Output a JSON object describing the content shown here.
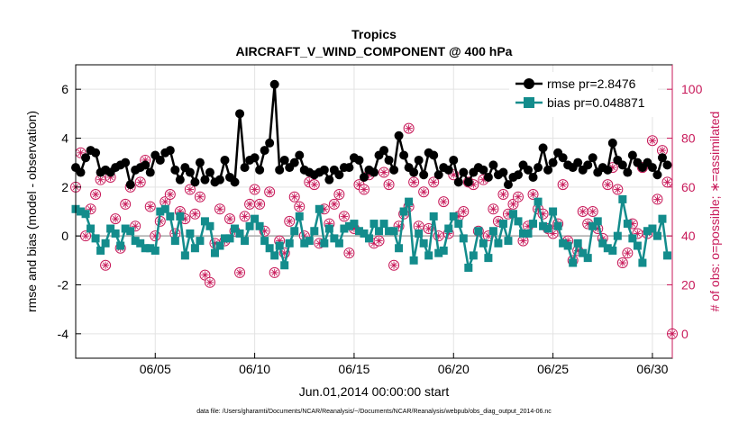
{
  "chart_data": {
    "type": "line",
    "title": "Tropics",
    "subtitle": "AIRCRAFT_V_WIND_COMPONENT @ 400 hPa",
    "xlabel": "Jun.01,2014 00:00:00 start",
    "ylabel_left": "rmse and bias (model - observation)",
    "ylabel_right": "# of obs: o=possible; ∗=assimilated",
    "footnote": "data file: /Users/gharamti/Documents/NCAR/Reanalysis/~/Documents/NCAR/Reanalysis/webpub/obs_diag_output_2014-06.nc",
    "x_ticks": [
      {
        "x": 5,
        "label": "06/05"
      },
      {
        "x": 10,
        "label": "06/10"
      },
      {
        "x": 15,
        "label": "06/15"
      },
      {
        "x": 20,
        "label": "06/20"
      },
      {
        "x": 25,
        "label": "06/25"
      },
      {
        "x": 30,
        "label": "06/30"
      }
    ],
    "xlim": [
      1,
      31
    ],
    "ylim_left": [
      -5,
      7
    ],
    "yticks_left": [
      -4,
      -2,
      0,
      2,
      4,
      6
    ],
    "ylim_right": [
      -10,
      110
    ],
    "yticks_right": [
      0,
      20,
      40,
      60,
      80,
      100
    ],
    "grid": true,
    "legend_position": "top-right",
    "colors": {
      "rmse": "#000000",
      "bias": "#138c8c",
      "obs": "#c81a5a",
      "zero_line": "#aaaaaa"
    },
    "x": [
      1.0,
      1.25,
      1.5,
      1.75,
      2.0,
      2.25,
      2.5,
      2.75,
      3.0,
      3.25,
      3.5,
      3.75,
      4.0,
      4.25,
      4.5,
      4.75,
      5.0,
      5.25,
      5.5,
      5.75,
      6.0,
      6.25,
      6.5,
      6.75,
      7.0,
      7.25,
      7.5,
      7.75,
      8.0,
      8.25,
      8.5,
      8.75,
      9.0,
      9.25,
      9.5,
      9.75,
      10.0,
      10.25,
      10.5,
      10.75,
      11.0,
      11.25,
      11.5,
      11.75,
      12.0,
      12.25,
      12.5,
      12.75,
      13.0,
      13.25,
      13.5,
      13.75,
      14.0,
      14.25,
      14.5,
      14.75,
      15.0,
      15.25,
      15.5,
      15.75,
      16.0,
      16.25,
      16.5,
      16.75,
      17.0,
      17.25,
      17.5,
      17.75,
      18.0,
      18.25,
      18.5,
      18.75,
      19.0,
      19.25,
      19.5,
      19.75,
      20.0,
      20.25,
      20.5,
      20.75,
      21.0,
      21.25,
      21.5,
      21.75,
      22.0,
      22.25,
      22.5,
      22.75,
      23.0,
      23.25,
      23.5,
      23.75,
      24.0,
      24.25,
      24.5,
      24.75,
      25.0,
      25.25,
      25.5,
      25.75,
      26.0,
      26.25,
      26.5,
      26.75,
      27.0,
      27.25,
      27.5,
      27.75,
      28.0,
      28.25,
      28.5,
      28.75,
      29.0,
      29.25,
      29.5,
      29.75,
      30.0,
      30.25,
      30.5,
      30.75
    ],
    "series": [
      {
        "name": "rmse pr=2.8476",
        "axis": "left",
        "marker": "circle",
        "values": [
          2.8,
          2.6,
          3.2,
          3.5,
          3.4,
          2.6,
          2.7,
          2.6,
          2.8,
          2.9,
          3.0,
          2.1,
          2.7,
          2.8,
          2.9,
          2.6,
          3.3,
          3.1,
          3.4,
          3.5,
          2.7,
          2.3,
          2.8,
          2.6,
          2.2,
          3.0,
          2.3,
          2.6,
          2.2,
          2.3,
          3.1,
          2.4,
          2.2,
          5.0,
          2.8,
          3.1,
          3.2,
          2.7,
          3.5,
          3.8,
          6.2,
          2.7,
          3.1,
          2.8,
          3.0,
          3.3,
          2.7,
          2.6,
          2.5,
          2.6,
          2.7,
          2.3,
          2.7,
          2.5,
          2.8,
          2.8,
          3.2,
          3.1,
          2.4,
          2.7,
          2.6,
          3.3,
          3.5,
          3.1,
          2.7,
          4.1,
          3.3,
          2.8,
          2.6,
          3.1,
          2.5,
          3.4,
          3.3,
          2.5,
          2.8,
          2.7,
          3.1,
          2.2,
          2.6,
          2.2,
          2.6,
          2.8,
          2.7,
          2.4,
          2.9,
          2.5,
          2.6,
          2.1,
          2.4,
          2.5,
          2.9,
          2.7,
          2.4,
          2.8,
          3.6,
          2.7,
          3.0,
          3.4,
          3.2,
          2.9,
          2.8,
          3.0,
          2.7,
          2.9,
          3.2,
          2.6,
          2.8,
          2.7,
          3.8,
          3.1,
          2.9,
          2.6,
          3.3,
          3.0,
          2.8,
          3.0,
          2.8,
          2.5,
          3.2,
          2.9
        ]
      },
      {
        "name": "bias pr=0.048871",
        "axis": "left",
        "marker": "square",
        "values": [
          1.1,
          1.0,
          0.9,
          0.3,
          -0.1,
          -0.6,
          -0.3,
          0.3,
          0.1,
          -0.4,
          0.3,
          0.2,
          -0.2,
          -0.3,
          -0.5,
          -0.5,
          -0.6,
          1.0,
          1.1,
          0.8,
          -0.2,
          0.8,
          -0.8,
          0.1,
          -0.5,
          -0.2,
          0.6,
          0.4,
          -0.7,
          -0.4,
          -0.1,
          -0.1,
          0.3,
          0.1,
          -0.2,
          0.4,
          0.7,
          0.4,
          -0.2,
          -0.5,
          -0.8,
          -0.4,
          -1.2,
          -0.3,
          0.2,
          0.8,
          -0.3,
          -0.2,
          0.2,
          1.1,
          -0.3,
          0.3,
          -0.1,
          -0.3,
          0.3,
          0.4,
          0.5,
          0.2,
          0.1,
          -0.1,
          0.5,
          0.2,
          0.5,
          0.2,
          0.2,
          -0.5,
          1.0,
          1.4,
          -1.0,
          0.1,
          -0.3,
          -0.8,
          0.8,
          -0.7,
          -0.6,
          0.3,
          0.8,
          0.5,
          -0.1,
          -1.3,
          -0.8,
          0.2,
          -0.3,
          -0.9,
          0.2,
          -0.3,
          0.5,
          -0.2,
          0.9,
          0.6,
          0.1,
          0.1,
          0.5,
          1.4,
          0.4,
          0.3,
          1.0,
          0.4,
          -0.3,
          -0.4,
          -1.1,
          -0.3,
          -0.7,
          -0.9,
          0.4,
          0.6,
          -0.3,
          -0.5,
          -0.6,
          0.0,
          1.5,
          0.5,
          -0.1,
          -0.4,
          -1.1,
          0.2,
          0.3,
          0.0,
          0.7,
          -0.8
        ]
      },
      {
        "name": "possible",
        "axis": "right",
        "marker": "open-circle",
        "values": [
          60,
          74,
          40,
          51,
          57,
          63,
          28,
          64,
          47,
          35,
          53,
          60,
          44,
          62,
          71,
          52,
          40,
          46,
          54,
          57,
          41,
          50,
          47,
          59,
          49,
          56,
          24,
          21,
          37,
          51,
          38,
          47,
          42,
          25,
          48,
          53,
          59,
          53,
          42,
          58,
          25,
          38,
          33,
          46,
          56,
          52,
          40,
          62,
          61,
          37,
          51,
          45,
          53,
          57,
          48,
          33,
          43,
          61,
          59,
          65,
          37,
          38,
          66,
          61,
          28,
          44,
          49,
          52,
          62,
          44,
          58,
          43,
          62,
          40,
          54,
          41,
          65,
          48,
          50,
          62,
          61,
          42,
          63,
          40,
          51,
          46,
          57,
          49,
          53,
          56,
          38,
          44,
          57,
          51,
          49,
          43,
          41,
          45,
          61,
          38,
          30,
          34,
          50,
          45,
          50,
          43,
          39,
          61,
          68,
          59,
          29,
          33,
          45,
          41,
          68,
          41,
          79,
          55,
          75,
          62
        ]
      },
      {
        "name": "assimilated",
        "axis": "right",
        "marker": "star-circle",
        "values": [
          60,
          74,
          40,
          51,
          57,
          63,
          28,
          64,
          47,
          35,
          53,
          60,
          44,
          62,
          71,
          52,
          40,
          46,
          54,
          57,
          41,
          50,
          47,
          59,
          49,
          56,
          24,
          21,
          37,
          51,
          38,
          47,
          42,
          25,
          48,
          53,
          59,
          53,
          42,
          58,
          25,
          38,
          33,
          46,
          56,
          52,
          40,
          62,
          61,
          37,
          51,
          45,
          53,
          57,
          48,
          33,
          43,
          61,
          59,
          65,
          37,
          38,
          66,
          61,
          28,
          44,
          49,
          52,
          62,
          44,
          58,
          43,
          62,
          40,
          54,
          41,
          65,
          48,
          50,
          62,
          61,
          42,
          63,
          40,
          51,
          46,
          57,
          49,
          53,
          56,
          38,
          44,
          57,
          51,
          49,
          43,
          41,
          45,
          61,
          38,
          30,
          34,
          50,
          45,
          50,
          43,
          39,
          61,
          68,
          59,
          29,
          33,
          45,
          41,
          68,
          41,
          79,
          55,
          75,
          62
        ]
      }
    ],
    "right_extra_points": [
      {
        "x": 17.75,
        "value": 84
      },
      {
        "x": 31.0,
        "value": 0
      }
    ],
    "legend": [
      {
        "series": "rmse pr=2.8476",
        "marker": "circle"
      },
      {
        "series": "bias pr=0.048871",
        "marker": "square"
      }
    ]
  }
}
